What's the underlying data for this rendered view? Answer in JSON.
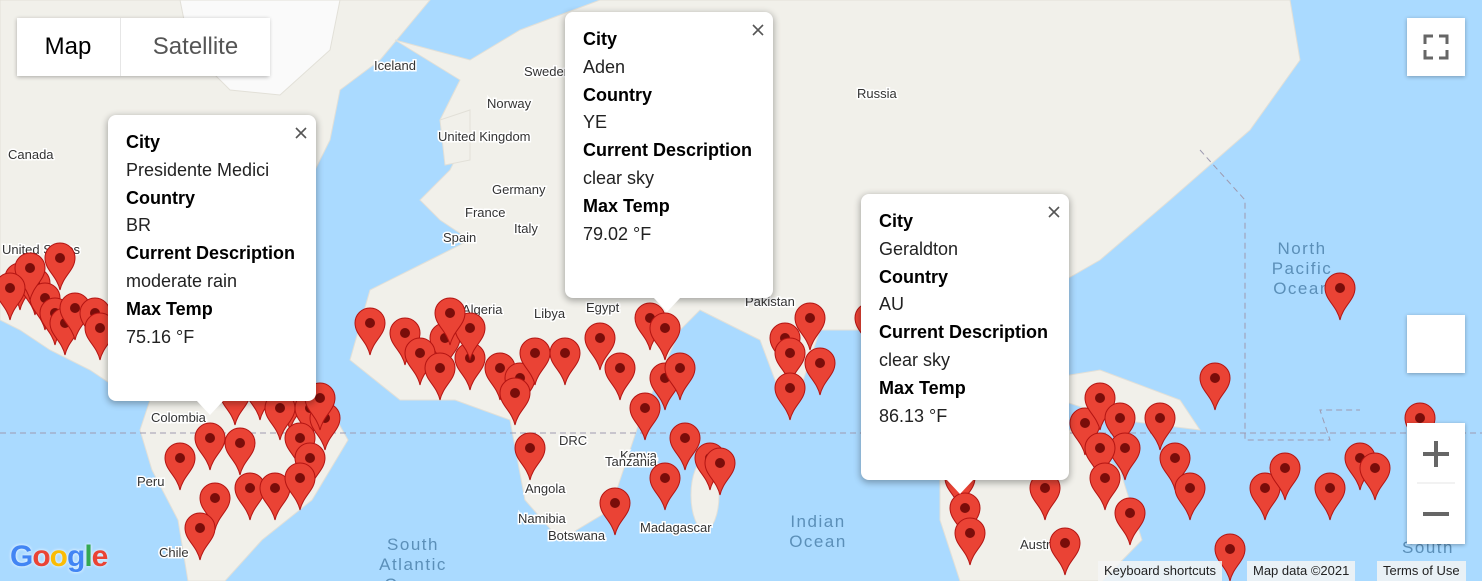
{
  "map_type_control": {
    "options": [
      "Map",
      "Satellite"
    ]
  },
  "map_labels": [
    "Canada",
    "Iceland",
    "Sweden",
    "Norway",
    "Russia",
    "United Kingdom",
    "Germany",
    "France",
    "Spain",
    "Italy",
    "United States",
    "Algeria",
    "Libya",
    "Egypt",
    "Pakistan",
    "Colombia",
    "Peru",
    "Chile",
    "DRC",
    "Kenya",
    "Tanzania",
    "Angola",
    "Namibia",
    "Botswana",
    "Madagascar",
    "Australia"
  ],
  "ocean_labels": [
    [
      "North",
      "Pacific",
      "Ocean"
    ],
    [
      "Indian",
      "Ocean"
    ],
    [
      "South",
      "Atlantic",
      "Ocean"
    ],
    [
      "South"
    ]
  ],
  "info_windows": [
    {
      "fields": [
        {
          "label": "City",
          "value": "Presidente Medici"
        },
        {
          "label": "Country",
          "value": "BR"
        },
        {
          "label": "Current Description",
          "value": "moderate rain"
        },
        {
          "label": "Max Temp",
          "value": "75.16 °F"
        }
      ]
    },
    {
      "fields": [
        {
          "label": "City",
          "value": "Aden"
        },
        {
          "label": "Country",
          "value": "YE"
        },
        {
          "label": "Current Description",
          "value": "clear sky"
        },
        {
          "label": "Max Temp",
          "value": "79.02 °F"
        }
      ]
    },
    {
      "fields": [
        {
          "label": "City",
          "value": "Geraldton"
        },
        {
          "label": "Country",
          "value": "AU"
        },
        {
          "label": "Current Description",
          "value": "clear sky"
        },
        {
          "label": "Max Temp",
          "value": "86.13 °F"
        }
      ]
    }
  ],
  "logo": "Google",
  "footer": [
    "Keyboard shortcuts",
    "Map data ©2021",
    "Terms of Use"
  ]
}
